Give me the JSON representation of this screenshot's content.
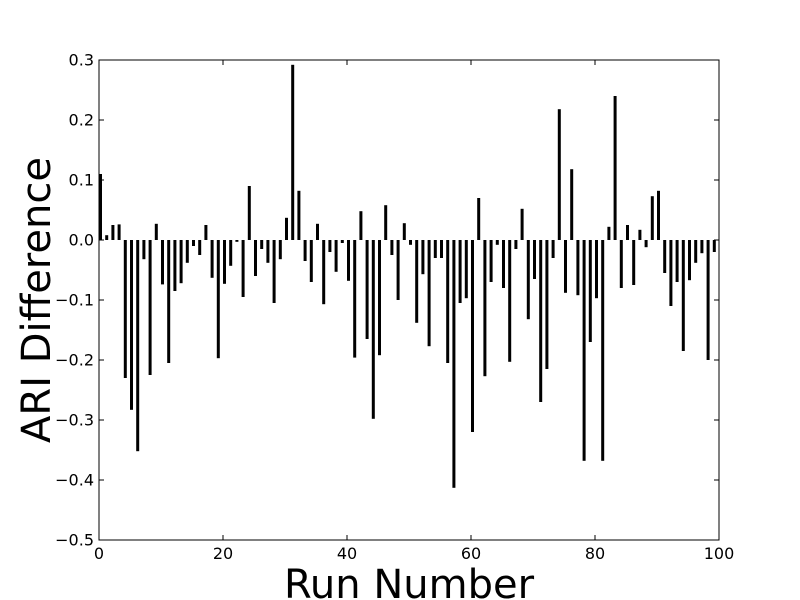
{
  "chart_data": {
    "type": "bar",
    "xlabel": "Run Number",
    "ylabel": "ARI Difference",
    "xlim": [
      0,
      100
    ],
    "ylim": [
      -0.5,
      0.3
    ],
    "xticks": [
      0,
      20,
      40,
      60,
      80,
      100
    ],
    "yticks": [
      -0.5,
      -0.4,
      -0.3,
      -0.2,
      -0.1,
      0.0,
      0.1,
      0.2,
      0.3
    ],
    "ytick_labels": [
      "−0.5",
      "−0.4",
      "−0.3",
      "−0.2",
      "−0.1",
      "0.0",
      "0.1",
      "0.2",
      "0.3"
    ],
    "xtick_labels": [
      "0",
      "20",
      "40",
      "60",
      "80",
      "100"
    ],
    "grid": false,
    "bar_color": "#000000",
    "x": [
      0,
      1,
      2,
      3,
      4,
      5,
      6,
      7,
      8,
      9,
      10,
      11,
      12,
      13,
      14,
      15,
      16,
      17,
      18,
      19,
      20,
      21,
      22,
      23,
      24,
      25,
      26,
      27,
      28,
      29,
      30,
      31,
      32,
      33,
      34,
      35,
      36,
      37,
      38,
      39,
      40,
      41,
      42,
      43,
      44,
      45,
      46,
      47,
      48,
      49,
      50,
      51,
      52,
      53,
      54,
      55,
      56,
      57,
      58,
      59,
      60,
      61,
      62,
      63,
      64,
      65,
      66,
      67,
      68,
      69,
      70,
      71,
      72,
      73,
      74,
      75,
      76,
      77,
      78,
      79,
      80,
      81,
      82,
      83,
      84,
      85,
      86,
      87,
      88,
      89,
      90,
      91,
      92,
      93,
      94,
      95,
      96,
      97,
      98,
      99
    ],
    "values": [
      0.11,
      0.008,
      0.025,
      0.026,
      -0.23,
      -0.283,
      -0.352,
      -0.032,
      -0.225,
      0.027,
      -0.074,
      -0.205,
      -0.085,
      -0.072,
      -0.038,
      -0.01,
      -0.025,
      0.025,
      -0.063,
      -0.197,
      -0.073,
      -0.043,
      -0.003,
      -0.095,
      0.09,
      -0.06,
      -0.015,
      -0.038,
      -0.105,
      -0.032,
      0.037,
      0.292,
      0.082,
      -0.035,
      -0.07,
      0.027,
      -0.107,
      -0.02,
      -0.053,
      -0.005,
      -0.068,
      -0.196,
      0.048,
      -0.165,
      -0.298,
      -0.192,
      0.058,
      -0.025,
      -0.1,
      0.028,
      -0.008,
      -0.138,
      -0.057,
      -0.177,
      -0.03,
      -0.03,
      -0.205,
      -0.413,
      -0.105,
      -0.097,
      -0.32,
      0.07,
      -0.227,
      -0.07,
      -0.008,
      -0.08,
      -0.203,
      -0.015,
      0.052,
      -0.132,
      -0.065,
      -0.27,
      -0.215,
      -0.03,
      0.218,
      -0.088,
      0.118,
      -0.092,
      -0.368,
      -0.17,
      -0.097,
      -0.368,
      0.022,
      0.24,
      -0.08,
      0.025,
      -0.075,
      0.017,
      -0.012,
      0.073,
      0.082,
      -0.055,
      -0.11,
      -0.07,
      -0.185,
      -0.067,
      -0.038,
      -0.022,
      -0.2,
      -0.02
    ]
  }
}
